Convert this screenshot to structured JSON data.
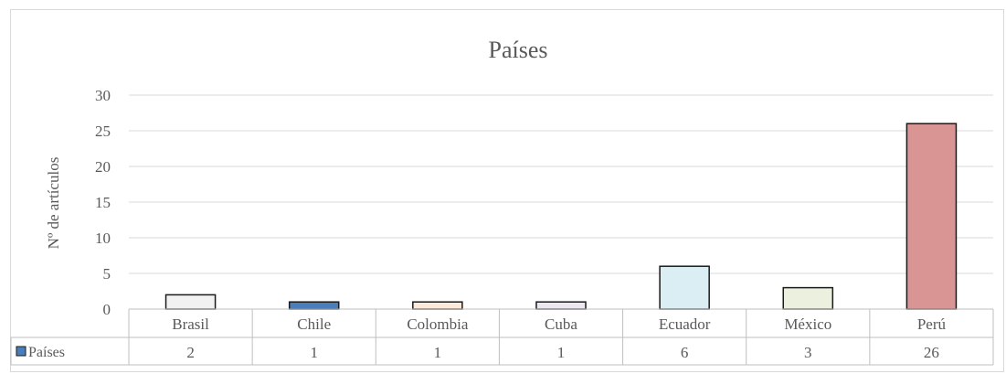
{
  "chart_data": {
    "type": "bar",
    "title": "Países",
    "ylabel": "Nº de artículos",
    "xlabel": "",
    "categories": [
      "Brasil",
      "Chile",
      "Colombia",
      "Cuba",
      "Ecuador",
      "México",
      "Perú"
    ],
    "series": [
      {
        "name": "Países",
        "values": [
          2,
          1,
          1,
          1,
          6,
          3,
          26
        ],
        "colors": [
          "#f2f2f2",
          "#4a7ebb",
          "#fde9d9",
          "#ede7f1",
          "#dbeef3",
          "#ebf1de",
          "#d99594"
        ],
        "legend_color": "#4a7ebb"
      }
    ],
    "ylim": [
      0,
      30
    ],
    "yticks": [
      0,
      5,
      10,
      15,
      20,
      25,
      30
    ],
    "grid": true,
    "legend": "data-table",
    "data_table": true
  }
}
